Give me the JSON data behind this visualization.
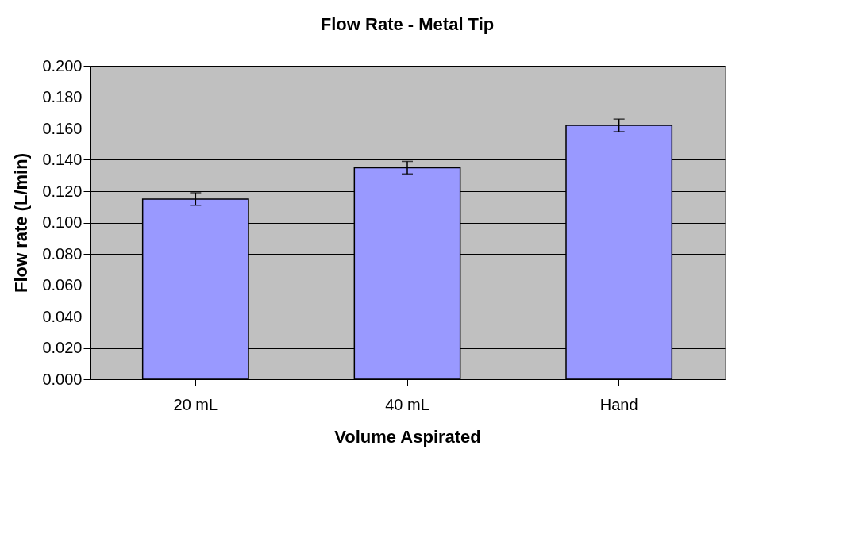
{
  "chart_data": {
    "type": "bar",
    "title": "Flow Rate - Metal Tip",
    "xlabel": "Volume Aspirated",
    "ylabel": "Flow rate (L/min)",
    "categories": [
      "20 mL",
      "40 mL",
      "Hand"
    ],
    "color": "#9999ff",
    "values": [
      0.115,
      0.135,
      0.162
    ],
    "errors": [
      0.004,
      0.004,
      0.004
    ],
    "ylim": [
      0,
      0.2
    ],
    "yticks": [
      {
        "value": 0,
        "label": "0.000"
      },
      {
        "value": 0.02,
        "label": "0.020"
      },
      {
        "value": 0.04,
        "label": "0.040"
      },
      {
        "value": 0.06,
        "label": "0.060"
      },
      {
        "value": 0.08,
        "label": "0.080"
      },
      {
        "value": 0.1,
        "label": "0.100"
      },
      {
        "value": 0.12,
        "label": "0.120"
      },
      {
        "value": 0.14,
        "label": "0.140"
      },
      {
        "value": 0.16,
        "label": "0.160"
      },
      {
        "value": 0.18,
        "label": "0.180"
      },
      {
        "value": 0.2,
        "label": "0.200"
      }
    ],
    "grid": "y"
  }
}
